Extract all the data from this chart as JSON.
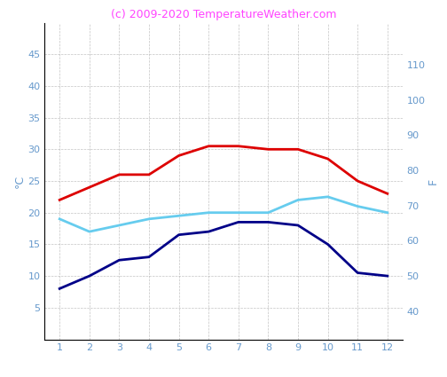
{
  "months": [
    1,
    2,
    3,
    4,
    5,
    6,
    7,
    8,
    9,
    10,
    11,
    12
  ],
  "red_line": [
    22,
    24,
    26,
    26,
    29,
    30.5,
    30.5,
    30,
    30,
    28.5,
    25,
    23
  ],
  "cyan_line": [
    19,
    17,
    18,
    19,
    19.5,
    20,
    20,
    20,
    22,
    22.5,
    21,
    20
  ],
  "navy_line": [
    8,
    10,
    12.5,
    13,
    16.5,
    17,
    18.5,
    18.5,
    18,
    15,
    10.5,
    10
  ],
  "red_color": "#dd0000",
  "cyan_color": "#66ccee",
  "navy_color": "#000088",
  "title": "(c) 2009-2020 TemperatureWeather.com",
  "title_color": "#ff44ff",
  "ylabel_left": "°C",
  "ylabel_right": "F",
  "ylim_left": [
    0,
    50
  ],
  "ylim_right": [
    32,
    122
  ],
  "yticks_left": [
    5,
    10,
    15,
    20,
    25,
    30,
    35,
    40,
    45
  ],
  "yticks_right": [
    40,
    50,
    60,
    70,
    80,
    90,
    100,
    110
  ],
  "xticks": [
    1,
    2,
    3,
    4,
    5,
    6,
    7,
    8,
    9,
    10,
    11,
    12
  ],
  "grid_color": "#aaaaaa",
  "tick_color": "#6699cc",
  "background_color": "#ffffff",
  "line_width": 2.0,
  "title_fontsize": 9,
  "tick_fontsize": 8,
  "ylabel_fontsize": 9
}
